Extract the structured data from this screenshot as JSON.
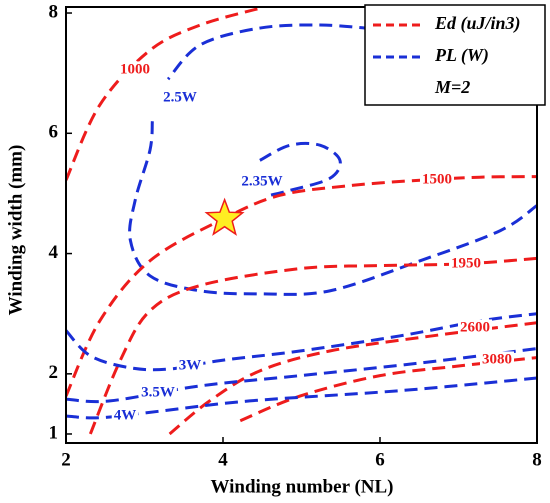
{
  "chart_data": {
    "type": "contour",
    "x_label": "Winding number (NL)",
    "y_label": "Winding width (mm)",
    "xlim": [
      2,
      8
    ],
    "xticks": [
      2,
      4,
      6,
      8
    ],
    "ylim": [
      0.85,
      8.1
    ],
    "yticks": [
      1,
      2,
      4,
      6,
      8
    ],
    "legend_position": "upper right",
    "legend": [
      {
        "name": "Ed (uJ/in3)",
        "color": "#ee1c1c"
      },
      {
        "name": "PL (W)",
        "color": "#1a2fd6"
      }
    ],
    "legend_note": "M=2",
    "contours": [
      {
        "label": "1000",
        "color": "#ee1c1c",
        "x": [
          2,
          2.43,
          3.07,
          3.71,
          4.47
        ],
        "y": [
          5.22,
          6.47,
          7.38,
          7.8,
          8.08
        ]
      },
      {
        "label": "2.5W",
        "color": "#1a2fd6",
        "x": [
          5.9,
          5.24,
          4.47,
          3.71,
          3.3,
          null,
          3.1,
          3.07,
          2.88,
          2.82,
          3.07,
          3.71,
          4.47,
          5.36,
          6.51,
          7.53,
          8
        ],
        "y": [
          7.74,
          7.8,
          7.75,
          7.47,
          6.9,
          null,
          6.2,
          5.72,
          4.88,
          4.22,
          3.63,
          3.38,
          3.33,
          3.38,
          3.88,
          4.38,
          4.8
        ]
      },
      {
        "label": "2.35W",
        "color": "#1a2fd6",
        "x": [
          4.47,
          4.85,
          5.24,
          5.49,
          5.36,
          4.85,
          4.6
        ],
        "y": [
          5.55,
          5.8,
          5.8,
          5.55,
          5.25,
          5.05,
          4.97
        ]
      },
      {
        "label": "1500",
        "color": "#ee1c1c",
        "x": [
          2,
          2.43,
          3.07,
          4.01,
          4.73,
          5.62,
          6.51,
          7.27,
          8
        ],
        "y": [
          1.63,
          2.88,
          3.88,
          4.58,
          4.97,
          5.13,
          5.22,
          5.27,
          5.28
        ]
      },
      {
        "label": "1950",
        "color": "#ee1c1c",
        "x": [
          2.31,
          2.69,
          3.07,
          3.71,
          4.98,
          6,
          7.08,
          8
        ],
        "y": [
          1.0,
          2.22,
          3.05,
          3.47,
          3.75,
          3.8,
          3.83,
          3.92
        ]
      },
      {
        "label": "3W",
        "color": "#1a2fd6",
        "x": [
          2,
          2.31,
          2.82,
          3.32,
          3.96,
          4.98,
          6.25,
          7.27,
          8
        ],
        "y": [
          2.72,
          2.3,
          2.1,
          2.08,
          2.22,
          2.38,
          2.63,
          2.88,
          3.0
        ]
      },
      {
        "label": "2600",
        "color": "#ee1c1c",
        "x": [
          3.32,
          3.83,
          4.47,
          5.36,
          6.6,
          8
        ],
        "y": [
          1.0,
          1.55,
          2.05,
          2.38,
          2.62,
          2.85
        ]
      },
      {
        "label": "3080",
        "color": "#ee1c1c",
        "x": [
          4.22,
          4.98,
          6,
          7,
          8
        ],
        "y": [
          1.22,
          1.63,
          1.97,
          2.13,
          2.27
        ]
      },
      {
        "label": "3.5W",
        "color": "#1a2fd6",
        "x": [
          2,
          2.56,
          3.71,
          4.98,
          6.51,
          8
        ],
        "y": [
          1.58,
          1.55,
          1.8,
          1.97,
          2.18,
          2.42
        ]
      },
      {
        "label": "4W",
        "color": "#1a2fd6",
        "x": [
          2,
          2.43,
          3.2,
          4.34,
          6.25,
          8
        ],
        "y": [
          1.3,
          1.27,
          1.38,
          1.55,
          1.72,
          1.93
        ]
      }
    ],
    "marker": {
      "x": 4.02,
      "y": 4.58,
      "color": "#ffee22",
      "edge": "#ee1c1c"
    }
  }
}
